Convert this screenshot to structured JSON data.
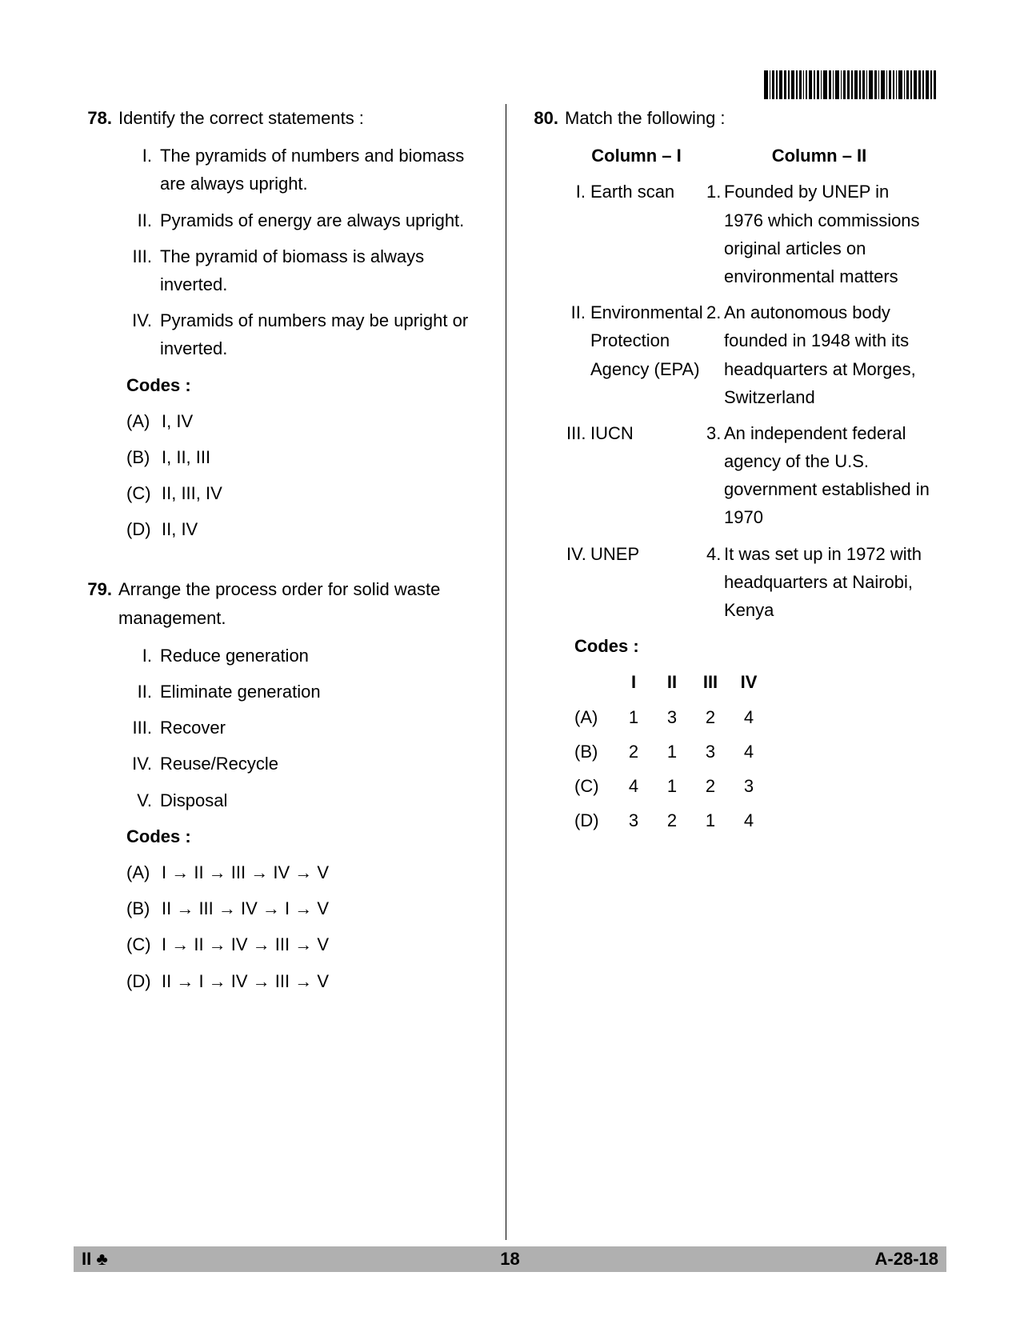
{
  "barcode_widths": [
    3,
    1,
    2,
    1,
    3,
    2,
    1,
    3,
    1,
    2,
    1,
    1,
    3,
    1,
    2,
    1,
    3,
    2,
    1,
    3,
    1,
    2,
    2,
    1,
    3,
    1,
    2,
    1,
    3,
    2,
    1,
    3,
    1,
    2,
    1,
    1,
    3,
    1,
    2,
    1,
    3,
    2,
    1,
    3,
    1,
    2
  ],
  "q78": {
    "num": "78.",
    "text": "Identify the correct statements :",
    "statements": [
      {
        "label": "I.",
        "text": "The pyramids of numbers and biomass are always upright."
      },
      {
        "label": "II.",
        "text": "Pyramids of energy are always upright."
      },
      {
        "label": "III.",
        "text": "The pyramid of biomass is always inverted."
      },
      {
        "label": "IV.",
        "text": "Pyramids of numbers may be upright or inverted."
      }
    ],
    "codes_label": "Codes :",
    "options": [
      {
        "label": "(A)",
        "text": "I, IV"
      },
      {
        "label": "(B)",
        "text": "I, II, III"
      },
      {
        "label": "(C)",
        "text": "II, III, IV"
      },
      {
        "label": "(D)",
        "text": "II, IV"
      }
    ]
  },
  "q79": {
    "num": "79.",
    "text": "Arrange the process order for solid waste management.",
    "statements": [
      {
        "label": "I.",
        "text": "Reduce generation"
      },
      {
        "label": "II.",
        "text": "Eliminate generation"
      },
      {
        "label": "III.",
        "text": "Recover"
      },
      {
        "label": "IV.",
        "text": "Reuse/Recycle"
      },
      {
        "label": "V.",
        "text": "Disposal"
      }
    ],
    "codes_label": "Codes :",
    "options": [
      {
        "label": "(A)",
        "text": "I → II → III → IV → V"
      },
      {
        "label": "(B)",
        "text": "II → III → IV → I → V"
      },
      {
        "label": "(C)",
        "text": "I → II → IV → III → V"
      },
      {
        "label": "(D)",
        "text": "II → I → IV → III → V"
      }
    ]
  },
  "q80": {
    "num": "80.",
    "text": "Match the following :",
    "col1_header": "Column – I",
    "col2_header": "Column – II",
    "rows": [
      {
        "l1": "I.",
        "t1": "Earth scan",
        "l2": "1.",
        "t2": "Founded by UNEP in 1976 which commissions original articles on environmental matters"
      },
      {
        "l1": "II.",
        "t1": "Environmental Protection Agency (EPA)",
        "l2": "2.",
        "t2": "An autonomous body  founded in 1948 with its headquarters at Morges, Switzerland"
      },
      {
        "l1": "III.",
        "t1": "IUCN",
        "l2": "3.",
        "t2": "An independent federal agency of the U.S. government established in 1970"
      },
      {
        "l1": "IV.",
        "t1": "UNEP",
        "l2": "4.",
        "t2": "It was set up in 1972 with headquarters at Nairobi, Kenya"
      }
    ],
    "codes_label": "Codes :",
    "codes_header": [
      "I",
      "II",
      "III",
      "IV"
    ],
    "codes_rows": [
      {
        "label": "(A)",
        "vals": [
          "1",
          "3",
          "2",
          "4"
        ]
      },
      {
        "label": "(B)",
        "vals": [
          "2",
          "1",
          "3",
          "4"
        ]
      },
      {
        "label": "(C)",
        "vals": [
          "4",
          "1",
          "2",
          "3"
        ]
      },
      {
        "label": "(D)",
        "vals": [
          "3",
          "2",
          "1",
          "4"
        ]
      }
    ]
  },
  "footer": {
    "left": "II ♣",
    "mid": "18",
    "right": "A-28-18"
  }
}
